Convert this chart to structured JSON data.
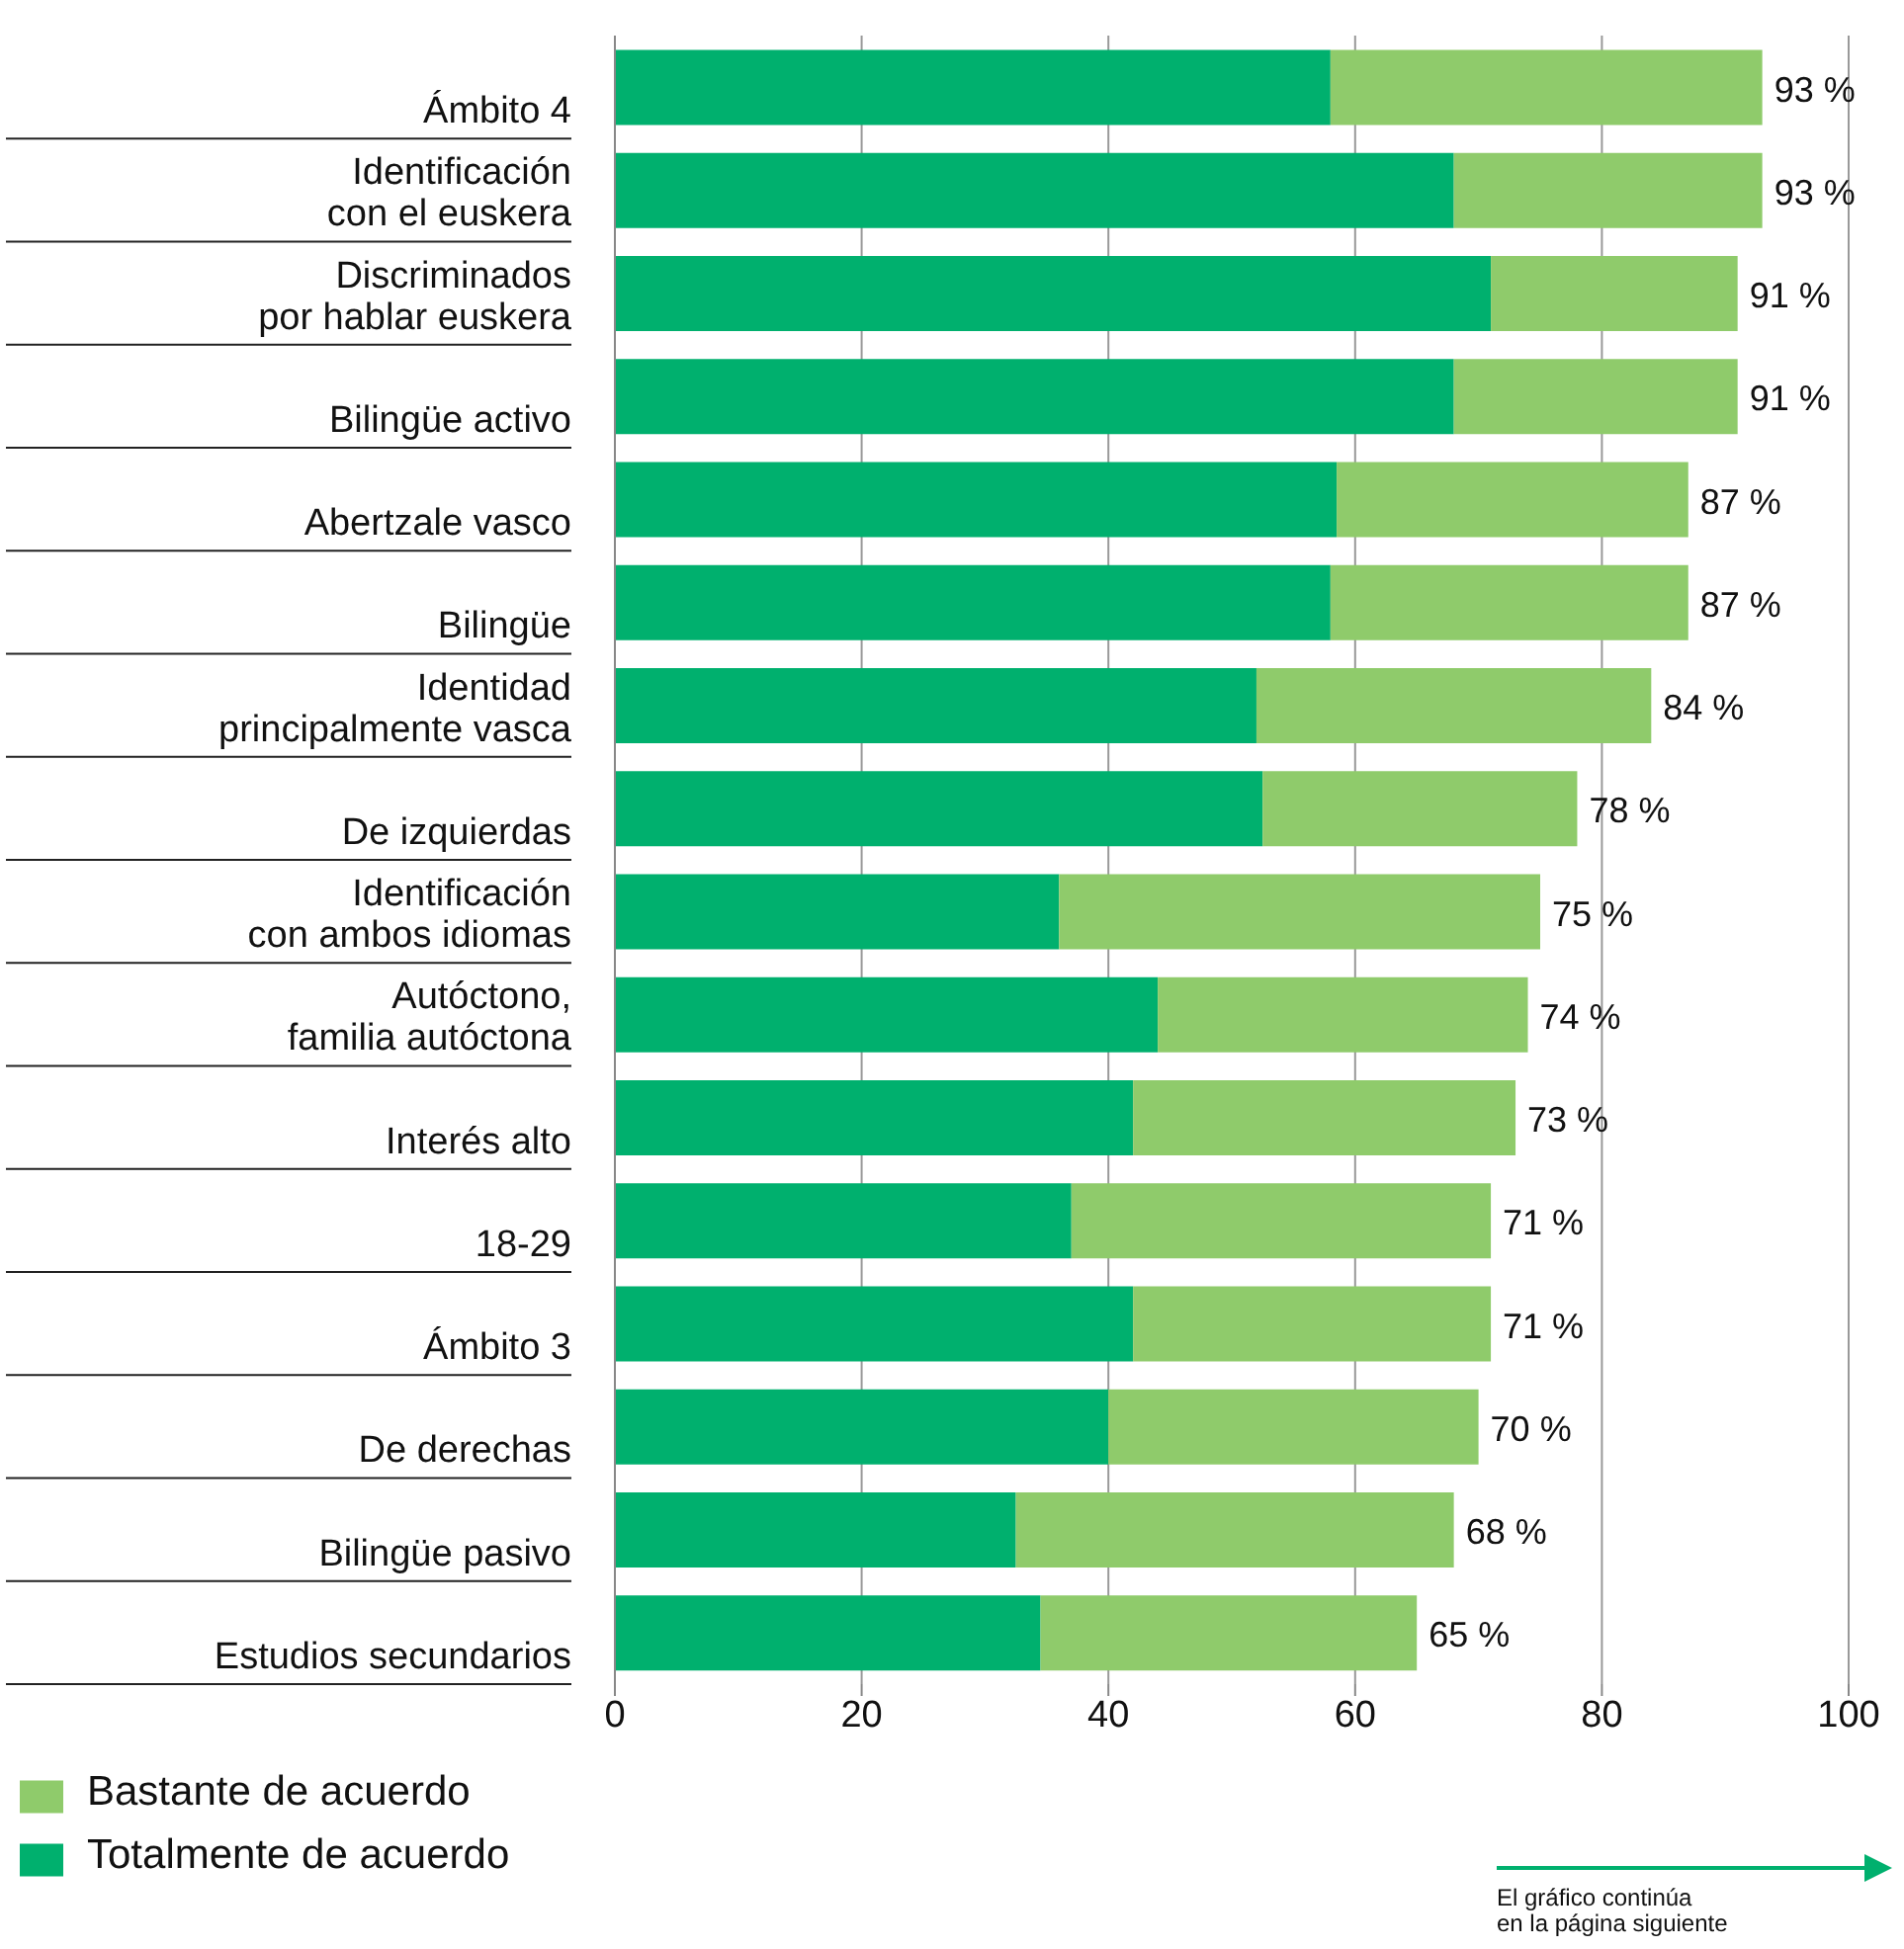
{
  "chart_data": {
    "type": "bar",
    "orientation": "horizontal",
    "stacked": true,
    "categories": [
      "Ámbito 4",
      "Identificación\ncon el euskera",
      "Discriminados\npor hablar euskera",
      "Bilingüe activo",
      "Abertzale vasco",
      "Bilingüe",
      "Identidad\nprincipalmente vasca",
      "De izquierdas",
      "Identificación\ncon ambos idiomas",
      "Autóctono,\nfamilia autóctona",
      "Interés alto",
      "18-29",
      "Ámbito 3",
      "De derechas",
      "Bilingüe pasivo",
      "Estudios secundarios"
    ],
    "series": [
      {
        "name": "Totalmente de acuerdo",
        "color": "#00b06e",
        "values": [
          58,
          68,
          71,
          68,
          58.5,
          58,
          52,
          52.5,
          36,
          44,
          42,
          37,
          42,
          40,
          32.5,
          34.5
        ]
      },
      {
        "name": "Bastante de acuerdo",
        "color": "#8fcb6b",
        "values": [
          35,
          25,
          20,
          23,
          28.5,
          29,
          32,
          25.5,
          39,
          30,
          31,
          34,
          29,
          30,
          35.5,
          30.5
        ]
      }
    ],
    "totals": [
      "93 %",
      "93 %",
      "91 %",
      "91 %",
      "87 %",
      "87 %",
      "84 %",
      "78 %",
      "75 %",
      "74 %",
      "73 %",
      "71 %",
      "71 %",
      "70 %",
      "68 %",
      "65 %"
    ],
    "xlim": [
      0,
      100
    ],
    "xticks": [
      0,
      20,
      40,
      60,
      80,
      100
    ],
    "grid": "x",
    "legend": "bottom left",
    "annotations": [
      "El gráfico continúa\nen la página siguiente"
    ]
  }
}
